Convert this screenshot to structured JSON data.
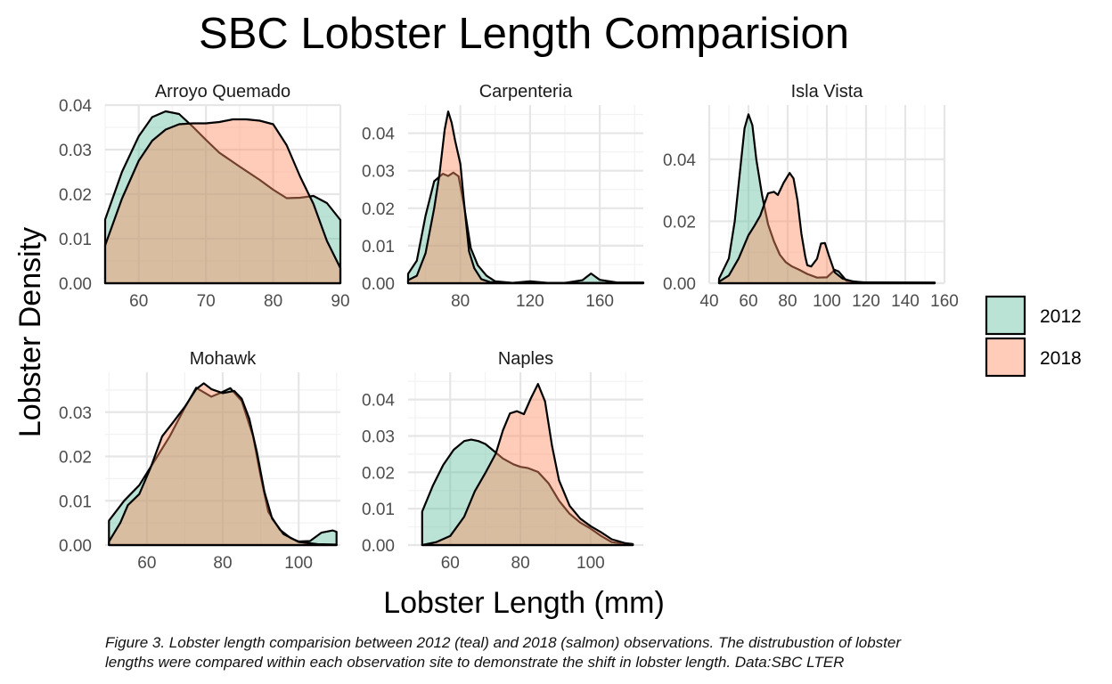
{
  "chart_data": {
    "type": "area",
    "title": "SBC Lobster Length Comparision",
    "xlabel": "Lobster Length (mm)",
    "ylabel": "Lobster Density",
    "grid": true,
    "legend_placement": "right",
    "colors": {
      "2012": "#66c2a5",
      "2018": "#fc8d62"
    },
    "caption": [
      "Figure 3. Lobster length comparision between 2012 (teal) and 2018 (salmon) observations. The distrubustion of lobster",
      "lengths were compared within each observation site to demonstrate the shift in lobster length. Data:SBC LTER"
    ],
    "legend": [
      "2012",
      "2018"
    ],
    "panels": [
      {
        "site": "Arroyo Quemado",
        "xlim": [
          55,
          90
        ],
        "ylim": [
          0,
          0.04
        ],
        "xticks": [
          "60",
          "70",
          "80",
          "90"
        ],
        "yticks": [
          "0.00",
          "0.01",
          "0.02",
          "0.03",
          "0.04"
        ],
        "series": [
          {
            "name": "2012",
            "points": [
              [
                55,
                0.0143
              ],
              [
                57.5,
                0.025
              ],
              [
                60,
                0.033
              ],
              [
                62,
                0.0373
              ],
              [
                64,
                0.0386
              ],
              [
                66,
                0.038
              ],
              [
                68,
                0.0352
              ],
              [
                70,
                0.0322
              ],
              [
                72,
                0.0293
              ],
              [
                75,
                0.0262
              ],
              [
                78,
                0.0232
              ],
              [
                80,
                0.021
              ],
              [
                82,
                0.0191
              ],
              [
                84,
                0.0192
              ],
              [
                86,
                0.0196
              ],
              [
                88,
                0.018
              ],
              [
                90,
                0.0142
              ]
            ]
          },
          {
            "name": "2018",
            "points": [
              [
                55,
                0.0085
              ],
              [
                57.5,
                0.019
              ],
              [
                60,
                0.0275
              ],
              [
                62,
                0.032
              ],
              [
                64,
                0.0345
              ],
              [
                66,
                0.0357
              ],
              [
                68,
                0.0359
              ],
              [
                70,
                0.0359
              ],
              [
                72,
                0.0362
              ],
              [
                74,
                0.0368
              ],
              [
                76,
                0.0368
              ],
              [
                78,
                0.0365
              ],
              [
                80,
                0.0357
              ],
              [
                82,
                0.031
              ],
              [
                84,
                0.024
              ],
              [
                86,
                0.0178
              ],
              [
                88,
                0.0095
              ],
              [
                90,
                0.0034
              ]
            ]
          }
        ]
      },
      {
        "site": "Carpenteria",
        "xlim": [
          50,
          185
        ],
        "ylim": [
          0,
          0.0475
        ],
        "xticks": [
          "80",
          "120",
          "160"
        ],
        "yticks": [
          "0.00",
          "0.01",
          "0.02",
          "0.03",
          "0.04"
        ],
        "series": [
          {
            "name": "2012",
            "points": [
              [
                50,
                0.0025
              ],
              [
                55,
                0.006
              ],
              [
                60,
                0.018
              ],
              [
                65,
                0.0272
              ],
              [
                70,
                0.0292
              ],
              [
                73,
                0.0286
              ],
              [
                76,
                0.0295
              ],
              [
                79,
                0.0285
              ],
              [
                82,
                0.021
              ],
              [
                86,
                0.0093
              ],
              [
                90,
                0.0048
              ],
              [
                95,
                0.002
              ],
              [
                100,
                0.0005
              ],
              [
                110,
                0.0001
              ],
              [
                120,
                0.0005
              ],
              [
                130,
                0.0001
              ],
              [
                140,
                0.0001
              ],
              [
                150,
                0.0008
              ],
              [
                155,
                0.0026
              ],
              [
                160,
                0.0009
              ],
              [
                170,
                0.0002
              ],
              [
                185,
                0.0002
              ]
            ]
          },
          {
            "name": "2018",
            "points": [
              [
                50,
                0.0008
              ],
              [
                55,
                0.002
              ],
              [
                60,
                0.008
              ],
              [
                65,
                0.02
              ],
              [
                68,
                0.029
              ],
              [
                71,
                0.041
              ],
              [
                73,
                0.0458
              ],
              [
                75,
                0.0428
              ],
              [
                77,
                0.038
              ],
              [
                80,
                0.0318
              ],
              [
                82,
                0.022
              ],
              [
                85,
                0.0085
              ],
              [
                88,
                0.004
              ],
              [
                92,
                0.0011
              ],
              [
                97,
                0.0003
              ],
              [
                105,
                0.0001
              ],
              [
                120,
                0.0001
              ],
              [
                185,
                0.0001
              ]
            ]
          }
        ]
      },
      {
        "site": "Isla Vista",
        "xlim": [
          40,
          160
        ],
        "ylim": [
          0,
          0.0575
        ],
        "xticks": [
          "40",
          "60",
          "80",
          "100",
          "120",
          "140",
          "160"
        ],
        "yticks": [
          "0.00",
          "0.02",
          "0.04"
        ],
        "series": [
          {
            "name": "2012",
            "points": [
              [
                45,
                0.0015
              ],
              [
                50,
                0.008
              ],
              [
                53,
                0.02
              ],
              [
                56,
                0.038
              ],
              [
                58,
                0.05
              ],
              [
                60,
                0.0545
              ],
              [
                62,
                0.051
              ],
              [
                64,
                0.04
              ],
              [
                67,
                0.0282
              ],
              [
                70,
                0.019
              ],
              [
                73,
                0.0135
              ],
              [
                76,
                0.0092
              ],
              [
                79,
                0.0068
              ],
              [
                82,
                0.0055
              ],
              [
                86,
                0.0043
              ],
              [
                90,
                0.003
              ],
              [
                95,
                0.0018
              ],
              [
                100,
                0.0019
              ],
              [
                104,
                0.0043
              ],
              [
                106,
                0.0038
              ],
              [
                110,
                0.0008
              ],
              [
                120,
                0.0002
              ],
              [
                155,
                0.0002
              ]
            ]
          },
          {
            "name": "2018",
            "points": [
              [
                45,
                0.0005
              ],
              [
                50,
                0.0025
              ],
              [
                55,
                0.008
              ],
              [
                60,
                0.0155
              ],
              [
                63,
                0.0185
              ],
              [
                66,
                0.0218
              ],
              [
                70,
                0.029
              ],
              [
                73,
                0.0295
              ],
              [
                75,
                0.0285
              ],
              [
                78,
                0.0325
              ],
              [
                81,
                0.0356
              ],
              [
                83,
                0.0338
              ],
              [
                85,
                0.0268
              ],
              [
                87,
                0.016
              ],
              [
                89,
                0.0085
              ],
              [
                90,
                0.0058
              ],
              [
                92,
                0.0054
              ],
              [
                95,
                0.0079
              ],
              [
                97,
                0.0128
              ],
              [
                99,
                0.013
              ],
              [
                101,
                0.009
              ],
              [
                104,
                0.0035
              ],
              [
                108,
                0.0015
              ],
              [
                115,
                0.0003
              ],
              [
                155,
                0.0002
              ]
            ]
          }
        ]
      },
      {
        "site": "Mohawk",
        "xlim": [
          49,
          111
        ],
        "ylim": [
          0,
          0.039
        ],
        "xticks": [
          "60",
          "80",
          "100"
        ],
        "yticks": [
          "0.00",
          "0.01",
          "0.02",
          "0.03"
        ],
        "series": [
          {
            "name": "2012",
            "points": [
              [
                50,
                0.0055
              ],
              [
                54,
                0.01
              ],
              [
                58,
                0.0135
              ],
              [
                62,
                0.019
              ],
              [
                66,
                0.0245
              ],
              [
                70,
                0.031
              ],
              [
                73,
                0.0355
              ],
              [
                75,
                0.0345
              ],
              [
                77,
                0.0335
              ],
              [
                79,
                0.0342
              ],
              [
                82,
                0.0354
              ],
              [
                85,
                0.0325
              ],
              [
                88,
                0.0245
              ],
              [
                90,
                0.0155
              ],
              [
                92,
                0.0075
              ],
              [
                95,
                0.0035
              ],
              [
                98,
                0.0015
              ],
              [
                100,
                0.0008
              ],
              [
                103,
                0.0009
              ],
              [
                106,
                0.0028
              ],
              [
                109,
                0.0033
              ],
              [
                110,
                0.003
              ]
            ]
          },
          {
            "name": "2018",
            "points": [
              [
                50,
                0.0008
              ],
              [
                53,
                0.005
              ],
              [
                55,
                0.009
              ],
              [
                58,
                0.0115
              ],
              [
                61,
                0.0175
              ],
              [
                64,
                0.0245
              ],
              [
                67,
                0.0278
              ],
              [
                70,
                0.0312
              ],
              [
                73,
                0.0352
              ],
              [
                75,
                0.0365
              ],
              [
                77,
                0.0352
              ],
              [
                80,
                0.0343
              ],
              [
                83,
                0.0348
              ],
              [
                85,
                0.033
              ],
              [
                87,
                0.0285
              ],
              [
                89,
                0.021
              ],
              [
                91,
                0.012
              ],
              [
                93,
                0.006
              ],
              [
                96,
                0.0025
              ],
              [
                100,
                0.0007
              ],
              [
                105,
                0.0002
              ],
              [
                110,
                0.0001
              ]
            ]
          }
        ]
      },
      {
        "site": "Naples",
        "xlim": [
          48,
          115
        ],
        "ylim": [
          0,
          0.0475
        ],
        "xticks": [
          "60",
          "80",
          "100"
        ],
        "yticks": [
          "0.00",
          "0.01",
          "0.02",
          "0.03",
          "0.04"
        ],
        "series": [
          {
            "name": "2012",
            "points": [
              [
                52,
                0.0092
              ],
              [
                55,
                0.0162
              ],
              [
                58,
                0.022
              ],
              [
                61,
                0.0262
              ],
              [
                64,
                0.0286
              ],
              [
                66,
                0.029
              ],
              [
                68,
                0.0286
              ],
              [
                70,
                0.0278
              ],
              [
                72,
                0.0262
              ],
              [
                75,
                0.0238
              ],
              [
                78,
                0.0222
              ],
              [
                80,
                0.0215
              ],
              [
                82,
                0.0212
              ],
              [
                85,
                0.0201
              ],
              [
                88,
                0.017
              ],
              [
                91,
                0.0122
              ],
              [
                94,
                0.0086
              ],
              [
                97,
                0.0062
              ],
              [
                100,
                0.0045
              ],
              [
                103,
                0.0025
              ],
              [
                106,
                0.0008
              ],
              [
                110,
                0.0003
              ],
              [
                112,
                0.0002
              ]
            ]
          },
          {
            "name": "2018",
            "points": [
              [
                52,
                0
              ],
              [
                56,
                0.0008
              ],
              [
                60,
                0.0025
              ],
              [
                64,
                0.0078
              ],
              [
                67,
                0.0148
              ],
              [
                70,
                0.0198
              ],
              [
                73,
                0.0252
              ],
              [
                75,
                0.0315
              ],
              [
                77,
                0.0362
              ],
              [
                79,
                0.0368
              ],
              [
                81,
                0.036
              ],
              [
                83,
                0.0404
              ],
              [
                85,
                0.0443
              ],
              [
                87,
                0.0395
              ],
              [
                89,
                0.0272
              ],
              [
                91,
                0.0178
              ],
              [
                94,
                0.0108
              ],
              [
                97,
                0.0073
              ],
              [
                100,
                0.0052
              ],
              [
                103,
                0.0035
              ],
              [
                106,
                0.0016
              ],
              [
                110,
                0.0005
              ],
              [
                112,
                0.0003
              ]
            ]
          }
        ]
      }
    ]
  }
}
